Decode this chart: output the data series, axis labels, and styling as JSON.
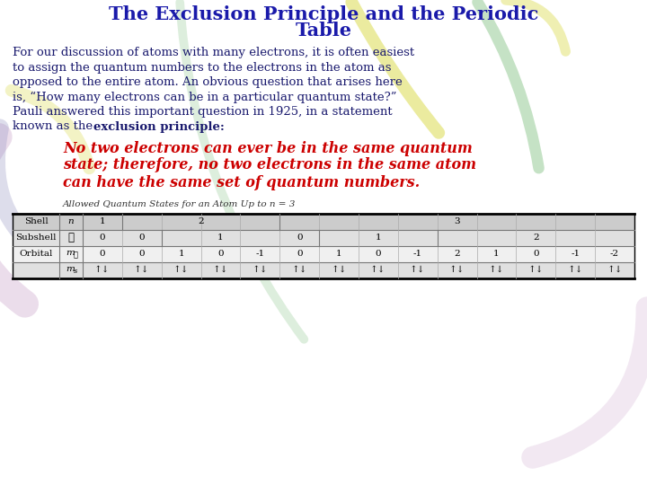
{
  "title_line1": "The Exclusion Principle and the Periodic",
  "title_line2": "Table",
  "title_color": "#1a1aaa",
  "body_lines": [
    "For our discussion of atoms with many electrons, it is often easiest",
    "to assign the quantum numbers to the electrons in the atom as",
    "opposed to the entire atom. An obvious question that arises here",
    "is, “How many electrons can be in a particular quantum state?”",
    "Pauli answered this important question in 1925, in a statement",
    "known as the "
  ],
  "bold_inline": "exclusion principle:",
  "red_lines": [
    "No two electrons can ever be in the same quantum",
    "state; therefore, no two electrons in the same atom",
    "can have the same set of quantum numbers."
  ],
  "table_caption": "Allowed Quantum States for an Atom Up to n = 3",
  "bg_color": "#ffffff",
  "body_color": "#1a1a6e",
  "red_color": "#cc0000",
  "table_header_bg": "#cccccc",
  "table_row_bg1": "#e0e0e0",
  "table_row_bg2": "#f0f0f0",
  "orbital_ml": [
    0,
    0,
    1,
    0,
    -1,
    0,
    1,
    0,
    -1,
    2,
    1,
    0,
    -1,
    -2
  ],
  "ms_sym": "↑↓",
  "wm_yellow": "#d8d840",
  "wm_green": "#80c080",
  "wm_purple": "#c090c0",
  "wm_blue": "#9090c0",
  "wm_ltgreen": "#90c890"
}
